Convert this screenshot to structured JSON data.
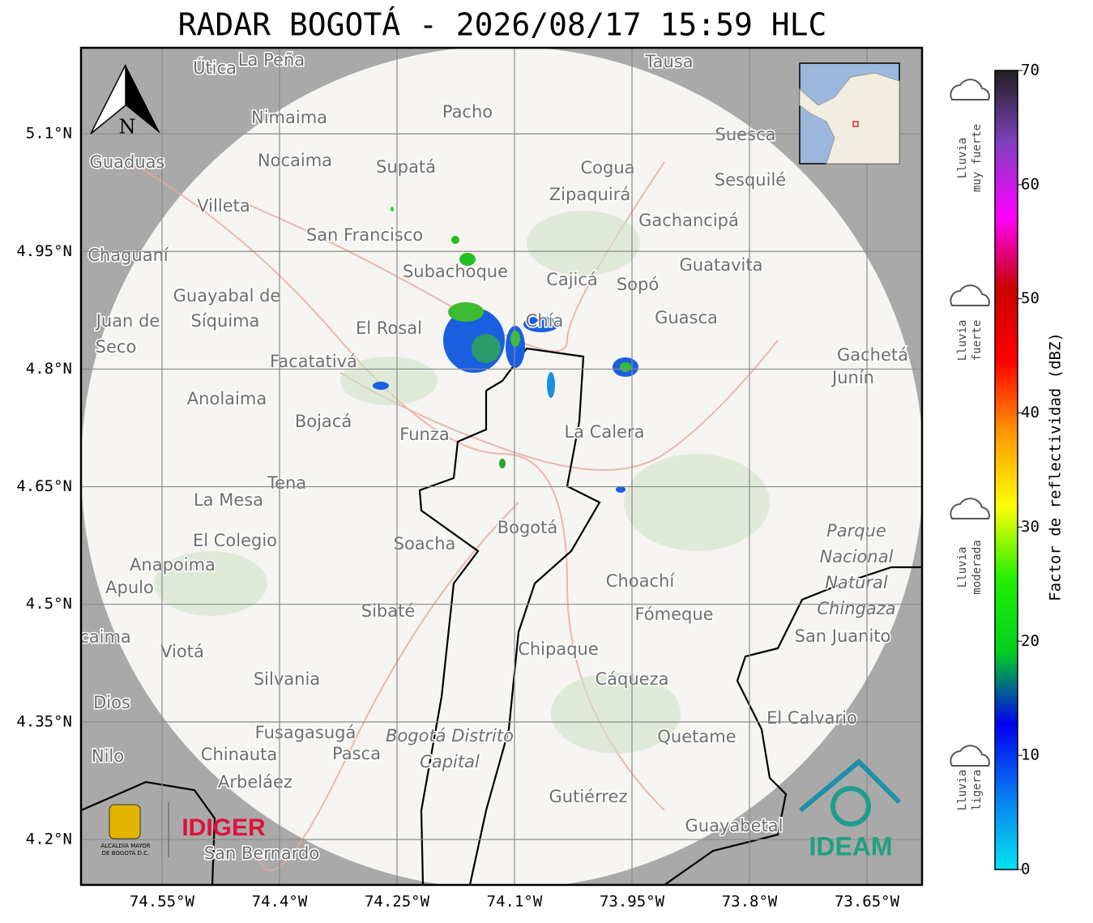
{
  "header": {
    "title": "RADAR BOGOTÁ - 2026/08/17 15:59 HLC"
  },
  "map": {
    "xlim": [
      -74.6534,
      -73.5797
    ],
    "ylim": [
      4.1421,
      5.2097
    ],
    "xticks": [
      {
        "value": -74.55,
        "label": "74.55°W"
      },
      {
        "value": -74.4,
        "label": "74.4°W"
      },
      {
        "value": -74.25,
        "label": "74.25°W"
      },
      {
        "value": -74.1,
        "label": "74.1°W"
      },
      {
        "value": -73.95,
        "label": "73.95°W"
      },
      {
        "value": -73.8,
        "label": "73.8°W"
      },
      {
        "value": -73.65,
        "label": "73.65°W"
      }
    ],
    "yticks": [
      {
        "value": 5.1,
        "label": "5.1°N"
      },
      {
        "value": 4.95,
        "label": "4.95°N"
      },
      {
        "value": 4.8,
        "label": "4.8°N"
      },
      {
        "value": 4.65,
        "label": "4.65°N"
      },
      {
        "value": 4.5,
        "label": "4.5°N"
      },
      {
        "value": 4.35,
        "label": "4.35°N"
      },
      {
        "value": 4.2,
        "label": "4.2°N"
      }
    ],
    "north": "N",
    "places": [
      "Útica",
      "La Peña",
      "Tausa",
      "Pacho",
      "Nimaima",
      "Guaduas",
      "Nocaima",
      "Supatá",
      "Cogua",
      "Suesca",
      "Sesquilé",
      "Villeta",
      "Zipaquirá",
      "Gachancipá",
      "San Francisco",
      "Chaguaní",
      "Subachoque",
      "Cajicá",
      "Sopó",
      "Guatavita",
      "Guayabal de",
      "Síquima",
      "Juan de",
      "Seco",
      "El Rosal",
      "Chía",
      "Guasca",
      "Facatativá",
      "Gachetá",
      "Junín",
      "Anolaima",
      "Bojacá",
      "Funza",
      "La Calera",
      "Tena",
      "La Mesa",
      "El Colegio",
      "Bogotá",
      "Soacha",
      "Anapoima",
      "Apulo",
      "Parque",
      "Nacional",
      "Natural",
      "Chingaza",
      "Choachí",
      "Fómeque",
      "Sibaté",
      "San Juanito",
      "caima",
      "Viotá",
      "Chipaque",
      "Silvania",
      "Cáqueza",
      "Dios",
      "El Calvario",
      "Fusagasugá",
      "Quetame",
      "Nilo",
      "Chinauta",
      "Pasca",
      "Bogotá Distrito",
      "Capital",
      "Arbeláez",
      "Gutiérrez",
      "Guayabetal",
      "San Bernardo"
    ]
  },
  "colorbar": {
    "label": "Factor de reflectividad (dBZ)",
    "lim": [
      0,
      70
    ],
    "ticks": [
      0,
      10,
      20,
      30,
      40,
      50,
      60,
      70
    ],
    "colors": [
      "#00e5f0",
      "#0a7cf0",
      "#0000f0",
      "#00d020",
      "#20f000",
      "#ffff00",
      "#ff9900",
      "#ff0000",
      "#cc0000",
      "#ff00ff",
      "#8040c0",
      "#202020"
    ]
  },
  "rain_levels": [
    [
      "Lluvia",
      "ligera"
    ],
    [
      "Lluvia",
      "moderada"
    ],
    [
      "Lluvia",
      "fuerte"
    ],
    [
      "Lluvia",
      "muy fuerte"
    ]
  ],
  "logos": {
    "idiger": "IDIGER",
    "ideam": "IDEAM",
    "alcaldia": [
      "ALCALDÍA MAYOR",
      "DE BOGOTÁ D.C."
    ]
  }
}
